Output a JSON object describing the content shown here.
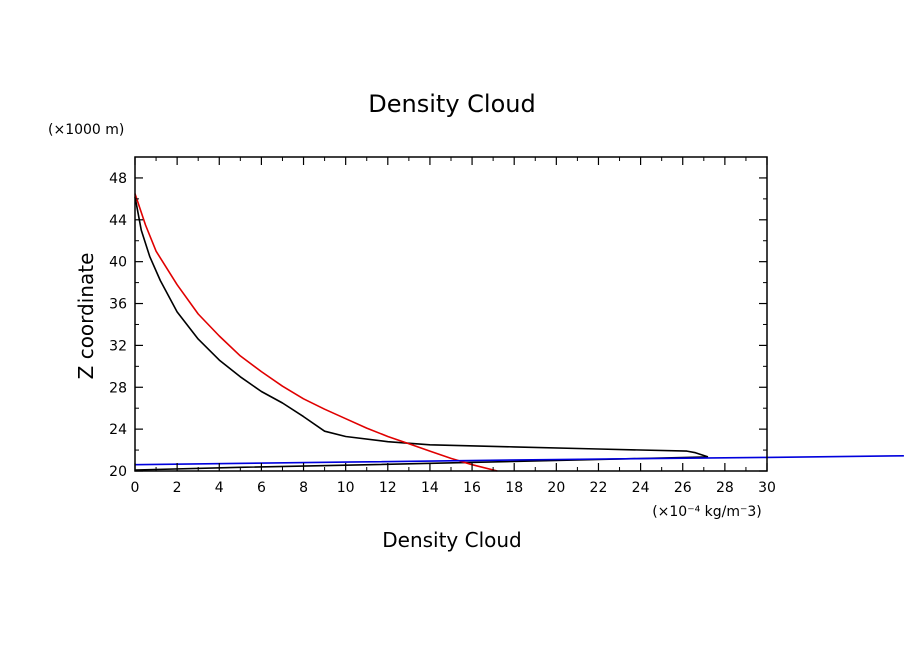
{
  "chart_data": {
    "type": "line",
    "title": "Density Cloud",
    "xlabel": "Density Cloud",
    "ylabel": "Z coordinate",
    "x_unit": "(×10⁻⁴ kg/m⁻3)",
    "y_unit": "(×1000 m)",
    "xlim": [
      0,
      30
    ],
    "ylim": [
      20,
      50
    ],
    "xticks": [
      0,
      2,
      4,
      6,
      8,
      10,
      12,
      14,
      16,
      18,
      20,
      22,
      24,
      26,
      28,
      30
    ],
    "yticks": [
      20,
      24,
      28,
      32,
      36,
      40,
      44,
      48
    ],
    "grid": false,
    "series": [
      {
        "color": "#000000",
        "x": [
          0.0,
          0.3,
          0.7,
          1.2,
          2.0,
          3.0,
          4.0,
          5.0,
          6.0,
          7.0,
          8.0,
          9.0,
          10.0,
          12.0,
          14.0,
          18.0,
          22.0,
          26.2,
          26.6,
          27.2
        ],
        "y": [
          46.2,
          43.0,
          40.5,
          38.2,
          35.2,
          32.6,
          30.6,
          29.0,
          27.6,
          26.5,
          25.2,
          23.8,
          23.3,
          22.8,
          22.5,
          22.3,
          22.1,
          21.9,
          21.75,
          21.35
        ]
      },
      {
        "color": "#000000",
        "x": [
          27.2,
          20.0,
          10.0,
          5.0,
          0.0
        ],
        "y": [
          21.35,
          21.0,
          20.55,
          20.35,
          20.1
        ]
      },
      {
        "color": "#e00000",
        "x": [
          0.0,
          0.5,
          1.0,
          2.0,
          3.0,
          4.0,
          5.0,
          6.0,
          7.0,
          8.0,
          9.0,
          10.0,
          11.0,
          12.0,
          13.0,
          14.0,
          15.0,
          16.0,
          17.2
        ],
        "y": [
          46.5,
          43.5,
          41.0,
          37.8,
          35.0,
          32.9,
          31.0,
          29.5,
          28.1,
          26.9,
          25.9,
          25.0,
          24.1,
          23.3,
          22.6,
          21.9,
          21.2,
          20.6,
          20.0
        ]
      },
      {
        "color": "#0000dd",
        "x": [
          0.0,
          10.0,
          20.0,
          30.0,
          36.5
        ],
        "y": [
          20.6,
          20.85,
          21.1,
          21.3,
          21.45
        ]
      }
    ]
  }
}
